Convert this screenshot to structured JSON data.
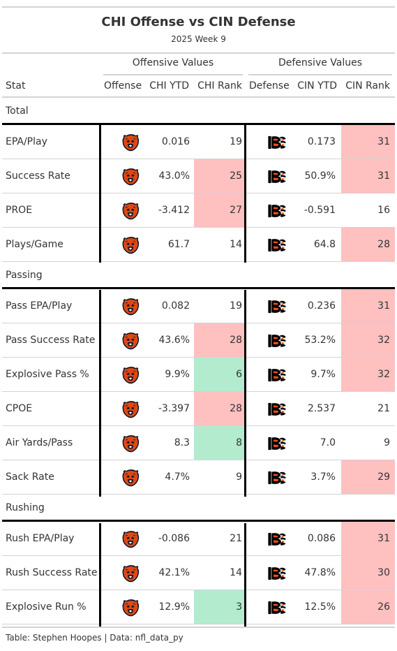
{
  "title": "CHI Offense vs CIN Defense",
  "subtitle": "2025 Week 9",
  "spanners": {
    "offense": "Offensive Values",
    "defense": "Defensive Values"
  },
  "columns": {
    "stat": "Stat",
    "offense": "Offense",
    "chi_ytd": "CHI YTD",
    "chi_rank": "CHI Rank",
    "defense": "Defense",
    "cin_ytd": "CIN YTD",
    "cin_rank": "CIN Rank"
  },
  "logos": {
    "offense": "chicago-bears-logo-icon",
    "defense": "cincinnati-bengals-logo-icon"
  },
  "colors": {
    "bad": "#ffc0c0",
    "good": "#b3ebcf"
  },
  "groups": [
    {
      "label": "Total",
      "rows": [
        {
          "stat": "EPA/Play",
          "chi_ytd": "0.016",
          "chi_rank": "19",
          "cin_ytd": "0.173",
          "cin_rank": "31"
        },
        {
          "stat": "Success Rate",
          "chi_ytd": "43.0%",
          "chi_rank": "25",
          "cin_ytd": "50.9%",
          "cin_rank": "31"
        },
        {
          "stat": "PROE",
          "chi_ytd": "-3.412",
          "chi_rank": "27",
          "cin_ytd": "-0.591",
          "cin_rank": "16"
        },
        {
          "stat": "Plays/Game",
          "chi_ytd": "61.7",
          "chi_rank": "14",
          "cin_ytd": "64.8",
          "cin_rank": "28"
        }
      ]
    },
    {
      "label": "Passing",
      "rows": [
        {
          "stat": "Pass EPA/Play",
          "chi_ytd": "0.082",
          "chi_rank": "19",
          "cin_ytd": "0.236",
          "cin_rank": "31"
        },
        {
          "stat": "Pass Success Rate",
          "chi_ytd": "43.6%",
          "chi_rank": "28",
          "cin_ytd": "53.2%",
          "cin_rank": "32"
        },
        {
          "stat": "Explosive Pass %",
          "chi_ytd": "9.9%",
          "chi_rank": "6",
          "cin_ytd": "9.7%",
          "cin_rank": "32"
        },
        {
          "stat": "CPOE",
          "chi_ytd": "-3.397",
          "chi_rank": "28",
          "cin_ytd": "2.537",
          "cin_rank": "21"
        },
        {
          "stat": "Air Yards/Pass",
          "chi_ytd": "8.3",
          "chi_rank": "8",
          "cin_ytd": "7.0",
          "cin_rank": "9"
        },
        {
          "stat": "Sack Rate",
          "chi_ytd": "4.7%",
          "chi_rank": "9",
          "cin_ytd": "3.7%",
          "cin_rank": "29"
        }
      ]
    },
    {
      "label": "Rushing",
      "rows": [
        {
          "stat": "Rush EPA/Play",
          "chi_ytd": "-0.086",
          "chi_rank": "21",
          "cin_ytd": "0.086",
          "cin_rank": "31"
        },
        {
          "stat": "Rush Success Rate",
          "chi_ytd": "42.1%",
          "chi_rank": "14",
          "cin_ytd": "47.8%",
          "cin_rank": "30"
        },
        {
          "stat": "Explosive Run %",
          "chi_ytd": "12.9%",
          "chi_rank": "3",
          "cin_ytd": "12.5%",
          "cin_rank": "26"
        }
      ]
    }
  ],
  "footer": "Table: Stephen Hoopes | Data: nfl_data_py"
}
